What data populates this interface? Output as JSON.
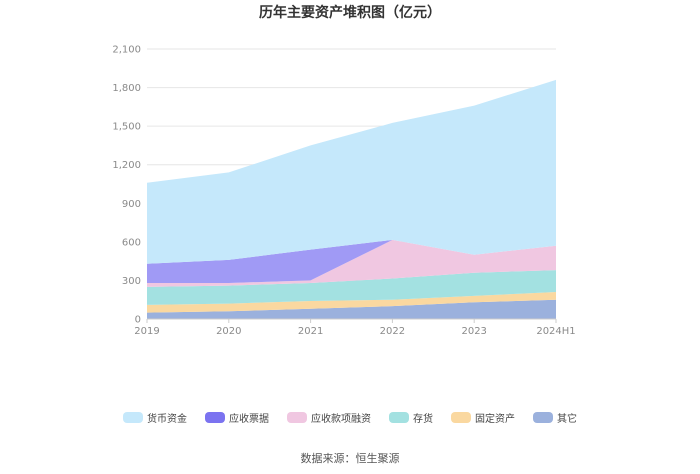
{
  "chart_data": {
    "type": "area",
    "stacked": true,
    "title": "历年主要资产堆积图（亿元）",
    "categories": [
      "2019",
      "2020",
      "2021",
      "2022",
      "2023",
      "2024H1"
    ],
    "ylim": [
      0,
      2100
    ],
    "yticks": [
      0,
      300,
      600,
      900,
      1200,
      1500,
      1800,
      2100
    ],
    "ytick_labels": [
      "0",
      "300",
      "600",
      "900",
      "1,200",
      "1,500",
      "1,800",
      "2,100"
    ],
    "grid": true,
    "legend_position": "bottom",
    "series": [
      {
        "name": "其它",
        "color": "#9bb1dd",
        "values": [
          50,
          60,
          80,
          100,
          130,
          150
        ]
      },
      {
        "name": "固定资产",
        "color": "#fad8a0",
        "values": [
          60,
          60,
          60,
          50,
          50,
          60
        ]
      },
      {
        "name": "存货",
        "color": "#a3e1e1",
        "values": [
          140,
          140,
          140,
          165,
          180,
          170
        ]
      },
      {
        "name": "应收款项融资",
        "color": "#f0c7e1",
        "values": [
          30,
          20,
          20,
          300,
          140,
          190
        ]
      },
      {
        "name": "应收票据",
        "color": "#a09af5",
        "values": [
          150,
          180,
          240,
          0,
          0,
          0
        ]
      },
      {
        "name": "货币资金",
        "color": "#c5e8fb",
        "values": [
          630,
          680,
          810,
          910,
          1160,
          1290
        ]
      }
    ]
  },
  "legend_order": [
    "货币资金",
    "应收票据",
    "应收款项融资",
    "存货",
    "固定资产",
    "其它"
  ],
  "source": "数据来源：恒生聚源"
}
